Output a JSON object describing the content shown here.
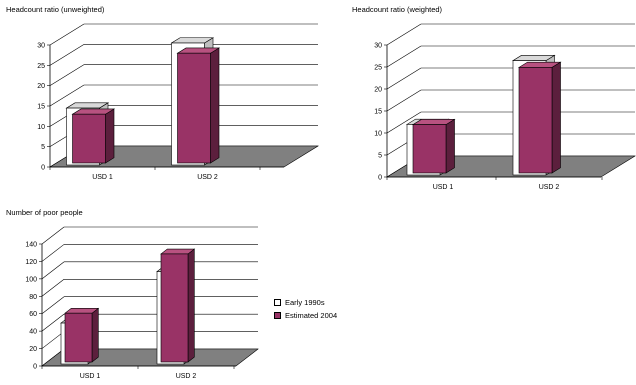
{
  "chart_data": [
    {
      "type": "bar",
      "title": "Headcount ratio (unweighted)",
      "categories": [
        "USD 1",
        "USD 2"
      ],
      "series": [
        {
          "name": "Early 1990s",
          "values": [
            14,
            30
          ]
        },
        {
          "name": "Estimated 2004",
          "values": [
            12,
            27
          ]
        }
      ],
      "yticks": [
        0,
        5,
        10,
        15,
        20,
        25,
        30
      ],
      "ylim": [
        0,
        30
      ],
      "grid": true
    },
    {
      "type": "bar",
      "title": "Headcount ratio (weighted)",
      "categories": [
        "USD 1",
        "USD 2"
      ],
      "series": [
        {
          "name": "Early 1990s",
          "values": [
            11.5,
            26
          ]
        },
        {
          "name": "Estimated 2004",
          "values": [
            11,
            24
          ]
        }
      ],
      "yticks": [
        0,
        5,
        10,
        15,
        20,
        25,
        30
      ],
      "ylim": [
        0,
        30
      ],
      "grid": true
    },
    {
      "type": "bar",
      "title": "Number of poor people",
      "categories": [
        "USD 1",
        "USD 2"
      ],
      "series": [
        {
          "name": "Early 1990s",
          "values": [
            47,
            106
          ]
        },
        {
          "name": "Estimated 2004",
          "values": [
            56,
            124
          ]
        }
      ],
      "yticks": [
        0,
        20,
        40,
        60,
        80,
        100,
        120,
        140
      ],
      "ylim": [
        0,
        140
      ],
      "grid": true
    }
  ],
  "legend": {
    "placement": "right of bottom chart",
    "items": [
      {
        "label": "Early 1990s",
        "color": "#ffffff"
      },
      {
        "label": "Estimated 2004",
        "color": "#993366"
      }
    ]
  },
  "colors": {
    "series1_front": "#ffffff",
    "series1_top": "#d9d9d9",
    "series1_side": "#bfbfbf",
    "series2_front": "#993366",
    "series2_top": "#b85280",
    "series2_side": "#5c1f3d",
    "floor": "#808080"
  }
}
